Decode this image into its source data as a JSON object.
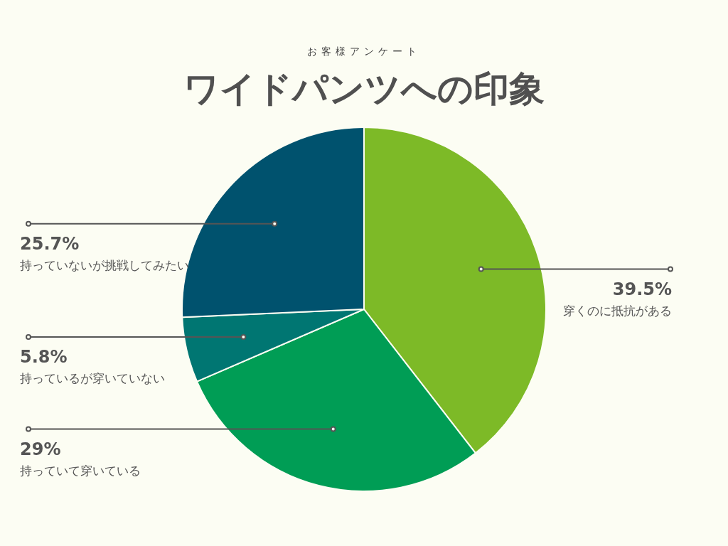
{
  "chart_data": {
    "type": "pie",
    "subtitle": "お客様アンケート",
    "title": "ワイドパンツへの印象",
    "categories": [
      "穿くのに抵抗がある",
      "持っていて穿いている",
      "持っているが穿いていない",
      "持っていないが挑戦してみたい"
    ],
    "values": [
      39.5,
      29,
      5.8,
      25.7
    ],
    "colors": [
      "#7dba27",
      "#009d55",
      "#007672",
      "#00526e"
    ],
    "value_labels": [
      "39.5%",
      "29%",
      "5.8%",
      "25.7%"
    ],
    "legend": false
  }
}
